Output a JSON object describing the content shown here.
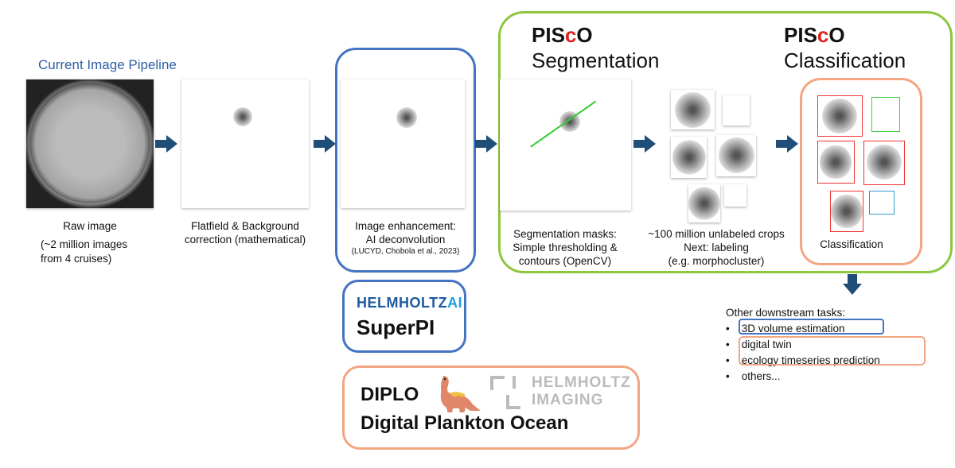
{
  "title": "Current Image Pipeline",
  "steps": [
    {
      "caption_lines": [
        "Raw image"
      ],
      "note_lines": [
        "(~2 million images",
        "from 4 cruises)"
      ]
    },
    {
      "caption_lines": [
        "Flatfield & Background",
        "correction (mathematical)"
      ]
    },
    {
      "caption_lines": [
        "Image enhancement:",
        "AI deconvolution"
      ],
      "citation": "(LUCYD, Chobola et al., 2023)"
    },
    {
      "caption_lines": [
        "Segmentation masks:",
        "Simple thresholding &",
        "contours (OpenCV)"
      ]
    },
    {
      "caption_lines": [
        "~100 million unlabeled crops",
        "Next: labeling",
        "(e.g. morphocluster)"
      ]
    },
    {
      "caption_lines": [
        "Classification"
      ]
    }
  ],
  "pisco": {
    "prefix": "PIS",
    "c": "c",
    "suffix": "O",
    "segmentation": "Segmentation",
    "classification": "Classification"
  },
  "superpi": {
    "logo_main": "HELMHOLTZ",
    "logo_ai": "AI",
    "name": "SuperPI"
  },
  "diplo": {
    "name": "DIPLO",
    "full": "Digital Plankton Ocean",
    "logo_line1": "HELMHOLTZ",
    "logo_line2": "IMAGING"
  },
  "downstream": {
    "title": "Other downstream tasks:",
    "items": [
      "3D volume estimation",
      "digital twin",
      "ecology timeseries prediction",
      "others..."
    ]
  },
  "colors": {
    "blue": "#4472c4",
    "green": "#8dc63f",
    "orange": "#f4a582",
    "arrow": "#1f4e79",
    "red": "#e02020"
  }
}
